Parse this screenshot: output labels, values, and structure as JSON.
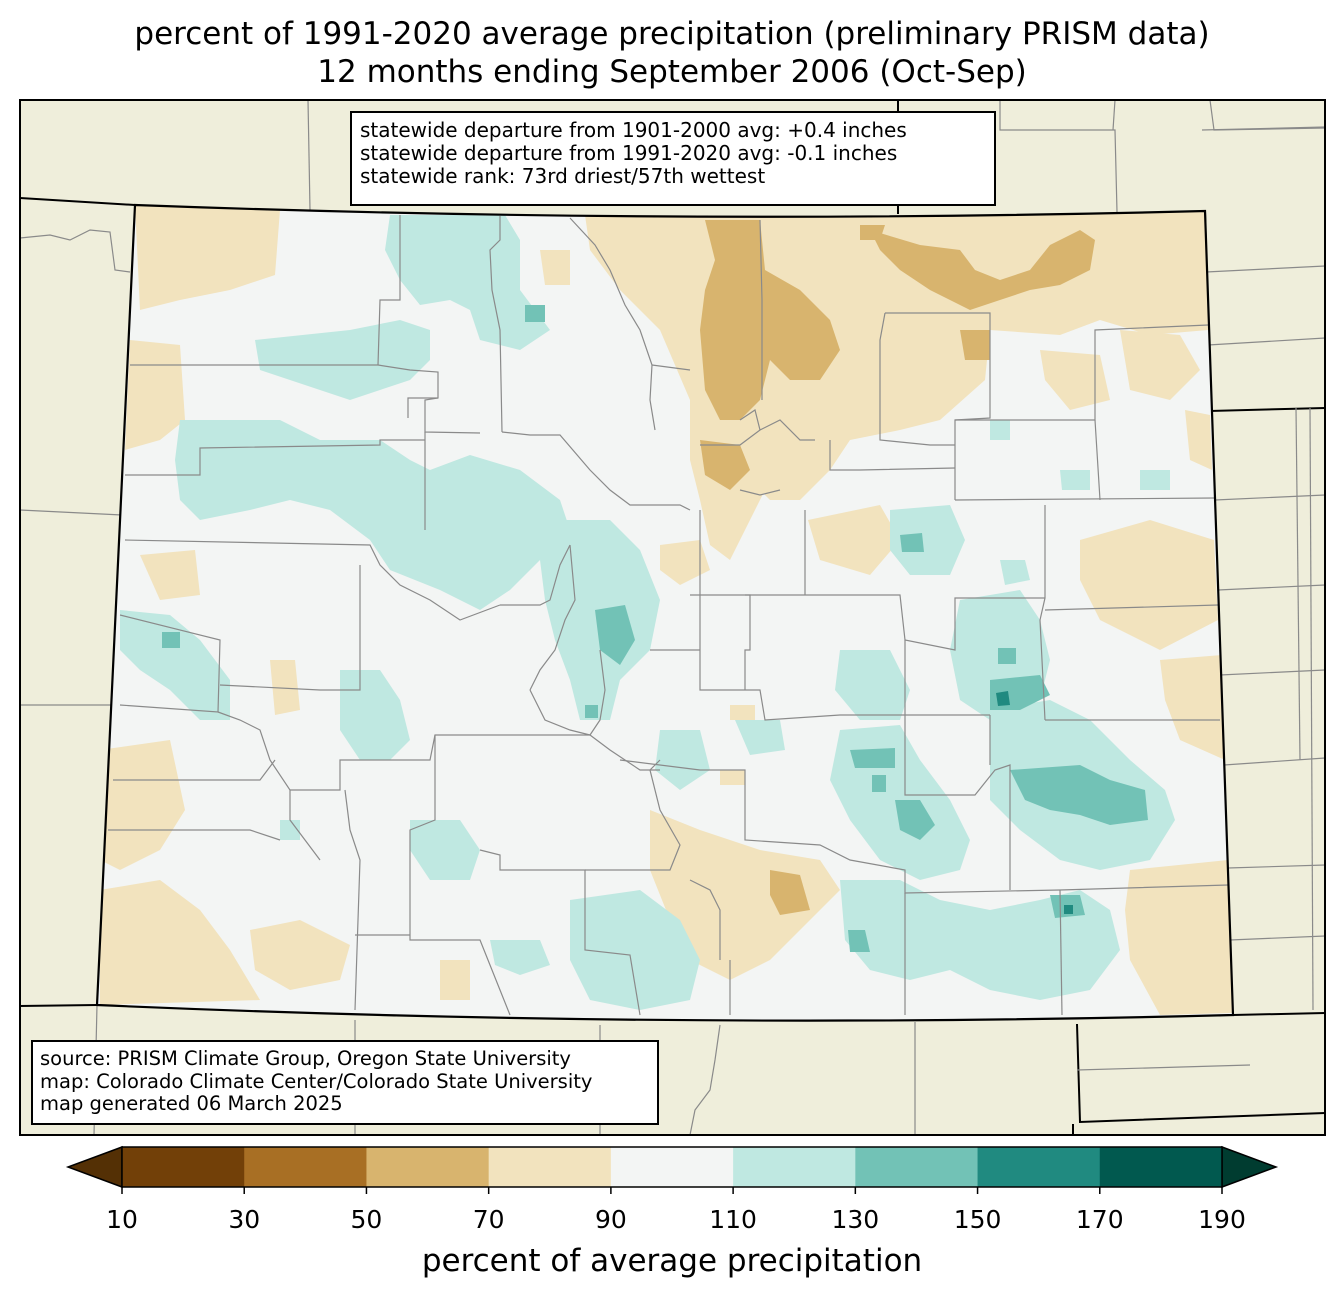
{
  "title": {
    "line1": "percent of 1991-2020 average precipitation (preliminary PRISM data)",
    "line2": "12 months ending September 2006 (Oct-Sep)"
  },
  "stats": {
    "line1": "statewide departure from 1901-2000 avg: +0.4 inches",
    "line2": "statewide departure from 1991-2020 avg: -0.1 inches",
    "line3": "statewide rank: 73rd driest/57th wettest"
  },
  "source": {
    "line1": "source: PRISM Climate Group, Oregon State University",
    "line2": "map: Colorado Climate Center/Colorado State University",
    "line3": "map generated 06 March 2025"
  },
  "colorbar": {
    "label": "percent of average precipitation",
    "ticks": [
      "10",
      "30",
      "50",
      "70",
      "90",
      "110",
      "130",
      "150",
      "170",
      "190"
    ],
    "under_color": "#543005",
    "over_color": "#003c30",
    "colors": [
      "#8c510a",
      "#bf812d",
      "#dfc27d",
      "#f6e8c3",
      "#f5f5f5",
      "#c7eae5",
      "#80cdc1",
      "#35978f",
      "#01665e"
    ],
    "bin_colors": [
      "#724008",
      "#a86f24",
      "#d8b46e",
      "#f2e3be",
      "#f3f5f4",
      "#bfe8e1",
      "#72c2b6",
      "#208a80",
      "#01594f"
    ]
  },
  "map_colors": {
    "land_outside": "#efeedb",
    "normal": "#f3f5f4",
    "wet_110": "#bfe8e1",
    "wet_130": "#72c2b6",
    "wet_150": "#208a80",
    "dry_70": "#f2e3be",
    "dry_50": "#d8b46e"
  }
}
